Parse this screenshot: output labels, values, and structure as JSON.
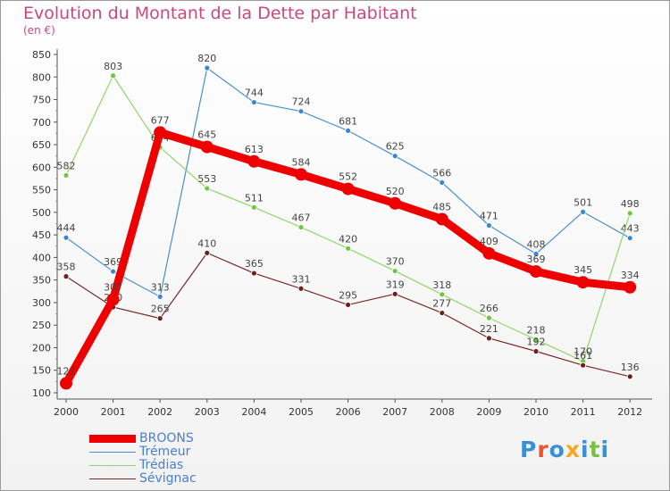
{
  "title": "Evolution du Montant de la Dette par Habitant",
  "subtitle": "(en €)",
  "logo": {
    "text": "Proxiti",
    "letter_colors": [
      "#3a8fd6",
      "#e8562a",
      "#3a8fd6",
      "#f5a623",
      "#3a8fd6",
      "#7bc043",
      "#3a8fd6"
    ]
  },
  "chart_data": {
    "type": "line",
    "x": [
      "2000",
      "2001",
      "2002",
      "2003",
      "2004",
      "2005",
      "2006",
      "2007",
      "2008",
      "2009",
      "2010",
      "2011",
      "2012"
    ],
    "ylim": [
      100,
      850
    ],
    "yticks": [
      100,
      150,
      200,
      250,
      300,
      350,
      400,
      450,
      500,
      550,
      600,
      650,
      700,
      750,
      800,
      850
    ],
    "grid": false,
    "legend_position": "bottom-left",
    "series": [
      {
        "name": "Trémeur",
        "color": "#4a8fcc",
        "point": "#3a86d0",
        "width": 1.2,
        "radius": 3,
        "values": [
          444,
          369,
          313,
          820,
          744,
          724,
          681,
          625,
          566,
          471,
          408,
          501,
          443
        ]
      },
      {
        "name": "Trédias",
        "color": "#8fd66a",
        "point": "#6fc640",
        "width": 1.2,
        "radius": 3,
        "values": [
          582,
          803,
          644,
          553,
          511,
          467,
          420,
          370,
          318,
          266,
          218,
          170,
          498
        ]
      },
      {
        "name": "Sévignac",
        "color": "#7a2a2a",
        "point": "#6b1f1f",
        "width": 1.2,
        "radius": 3,
        "values": [
          358,
          290,
          265,
          410,
          365,
          331,
          295,
          319,
          277,
          221,
          192,
          161,
          136
        ]
      },
      {
        "name": "BROONS",
        "color": "#ee0000",
        "point": "#ee0000",
        "width": 9,
        "radius": 7,
        "values": [
          121,
          307,
          677,
          645,
          613,
          584,
          552,
          520,
          485,
          409,
          369,
          345,
          334
        ]
      }
    ]
  },
  "legend": [
    {
      "name": "BROONS",
      "color": "#ee0000",
      "thickness": 9,
      "label_color": "#4a7fd0"
    },
    {
      "name": "Trémeur",
      "color": "#4a8fcc",
      "thickness": 1,
      "label_color": "#4a7fd0"
    },
    {
      "name": "Trédias",
      "color": "#8fd66a",
      "thickness": 1,
      "label_color": "#4a7fd0"
    },
    {
      "name": "Sévignac",
      "color": "#7a2a2a",
      "thickness": 1,
      "label_color": "#4a7fd0"
    }
  ]
}
